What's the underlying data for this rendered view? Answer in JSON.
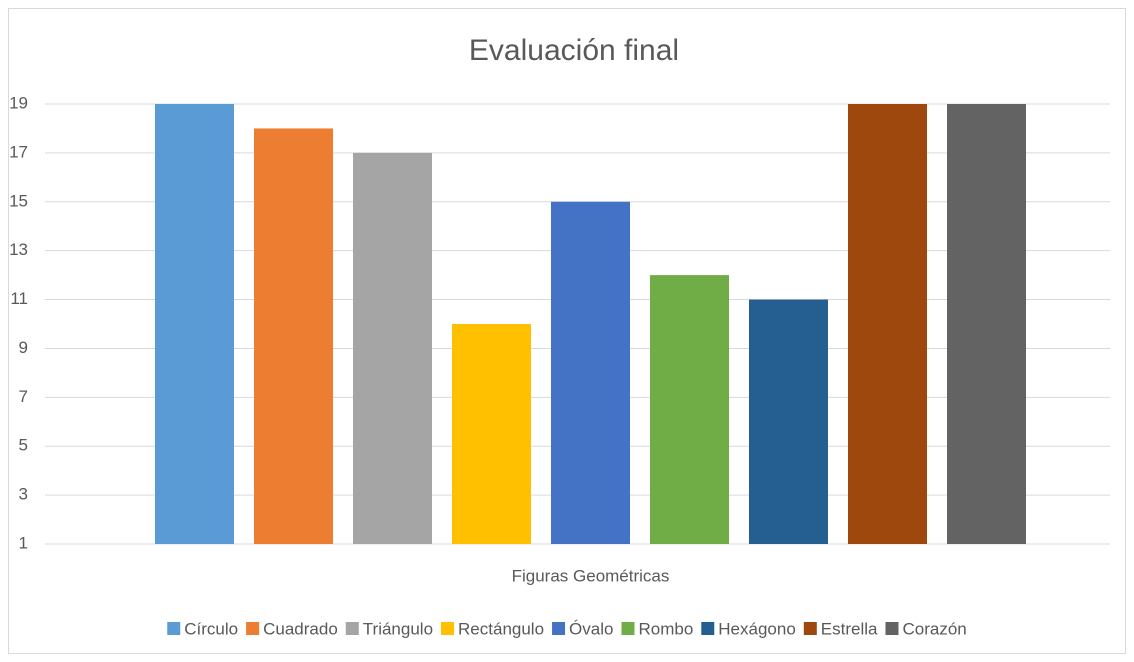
{
  "chart_data": {
    "type": "bar",
    "title": "Evaluación final",
    "categories": [
      "Figuras Geométricas"
    ],
    "series": [
      {
        "name": "Círculo",
        "color": "#5b9bd5",
        "values": [
          19
        ]
      },
      {
        "name": "Cuadrado",
        "color": "#ed7d31",
        "values": [
          18
        ]
      },
      {
        "name": "Triángulo",
        "color": "#a5a5a5",
        "values": [
          17
        ]
      },
      {
        "name": "Rectángulo",
        "color": "#ffc000",
        "values": [
          10
        ]
      },
      {
        "name": "Óvalo",
        "color": "#4472c4",
        "values": [
          15
        ]
      },
      {
        "name": "Rombo",
        "color": "#70ad47",
        "values": [
          12
        ]
      },
      {
        "name": "Hexágono",
        "color": "#255e91",
        "values": [
          11
        ]
      },
      {
        "name": "Estrella",
        "color": "#9e480e",
        "values": [
          19
        ]
      },
      {
        "name": "Corazón",
        "color": "#636363",
        "values": [
          19
        ]
      }
    ],
    "ylim": [
      1,
      19
    ],
    "yticks": [
      1,
      3,
      5,
      7,
      9,
      11,
      13,
      15,
      17,
      19
    ],
    "grid": true,
    "legend": "bottom"
  }
}
